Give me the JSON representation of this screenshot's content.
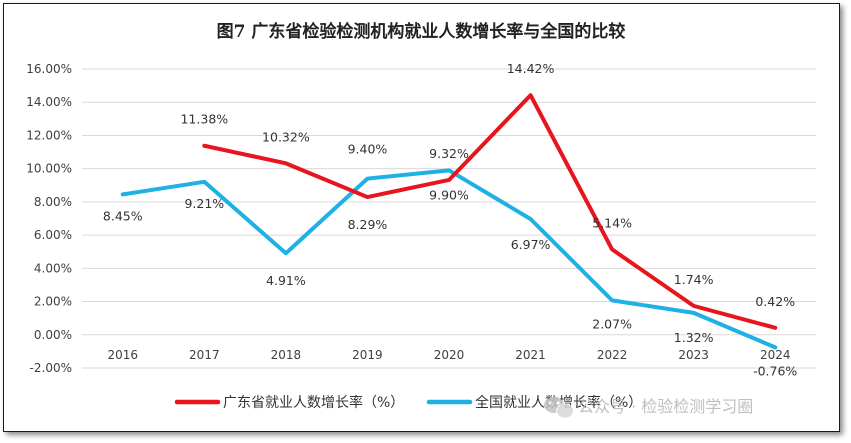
{
  "chart_data": {
    "type": "line",
    "title": "图7  广东省检验检测机构就业人数增长率与全国的比较",
    "categories": [
      "2016",
      "2017",
      "2018",
      "2019",
      "2020",
      "2021",
      "2022",
      "2023",
      "2024"
    ],
    "ylim": [
      -2,
      16
    ],
    "yticks": [
      -2,
      0,
      2,
      4,
      6,
      8,
      10,
      12,
      14,
      16
    ],
    "ytick_labels": [
      "-2.00%",
      "0.00%",
      "2.00%",
      "4.00%",
      "6.00%",
      "8.00%",
      "10.00%",
      "12.00%",
      "14.00%",
      "16.00%"
    ],
    "grid": true,
    "legend_position": "bottom",
    "series": [
      {
        "name": "广东省就业人数增长率（%）",
        "color": "#e8141e",
        "values": [
          null,
          11.38,
          10.32,
          8.29,
          9.32,
          14.42,
          5.14,
          1.74,
          0.42
        ],
        "labels": [
          "",
          "11.38%",
          "10.32%",
          "8.29%",
          "9.32%",
          "14.42%",
          "5.14%",
          "1.74%",
          "0.42%"
        ]
      },
      {
        "name": "全国就业人数增长率（%）",
        "color": "#1fb0e4",
        "values": [
          8.45,
          9.21,
          4.91,
          9.4,
          9.9,
          6.97,
          2.07,
          1.32,
          -0.76
        ],
        "labels": [
          "8.45%",
          "9.21%",
          "4.91%",
          "9.40%",
          "9.90%",
          "6.97%",
          "2.07%",
          "1.32%",
          "-0.76%"
        ]
      }
    ]
  },
  "watermark": {
    "text": "公众号 · 检验检测学习圈",
    "icon": "wechat-icon"
  }
}
